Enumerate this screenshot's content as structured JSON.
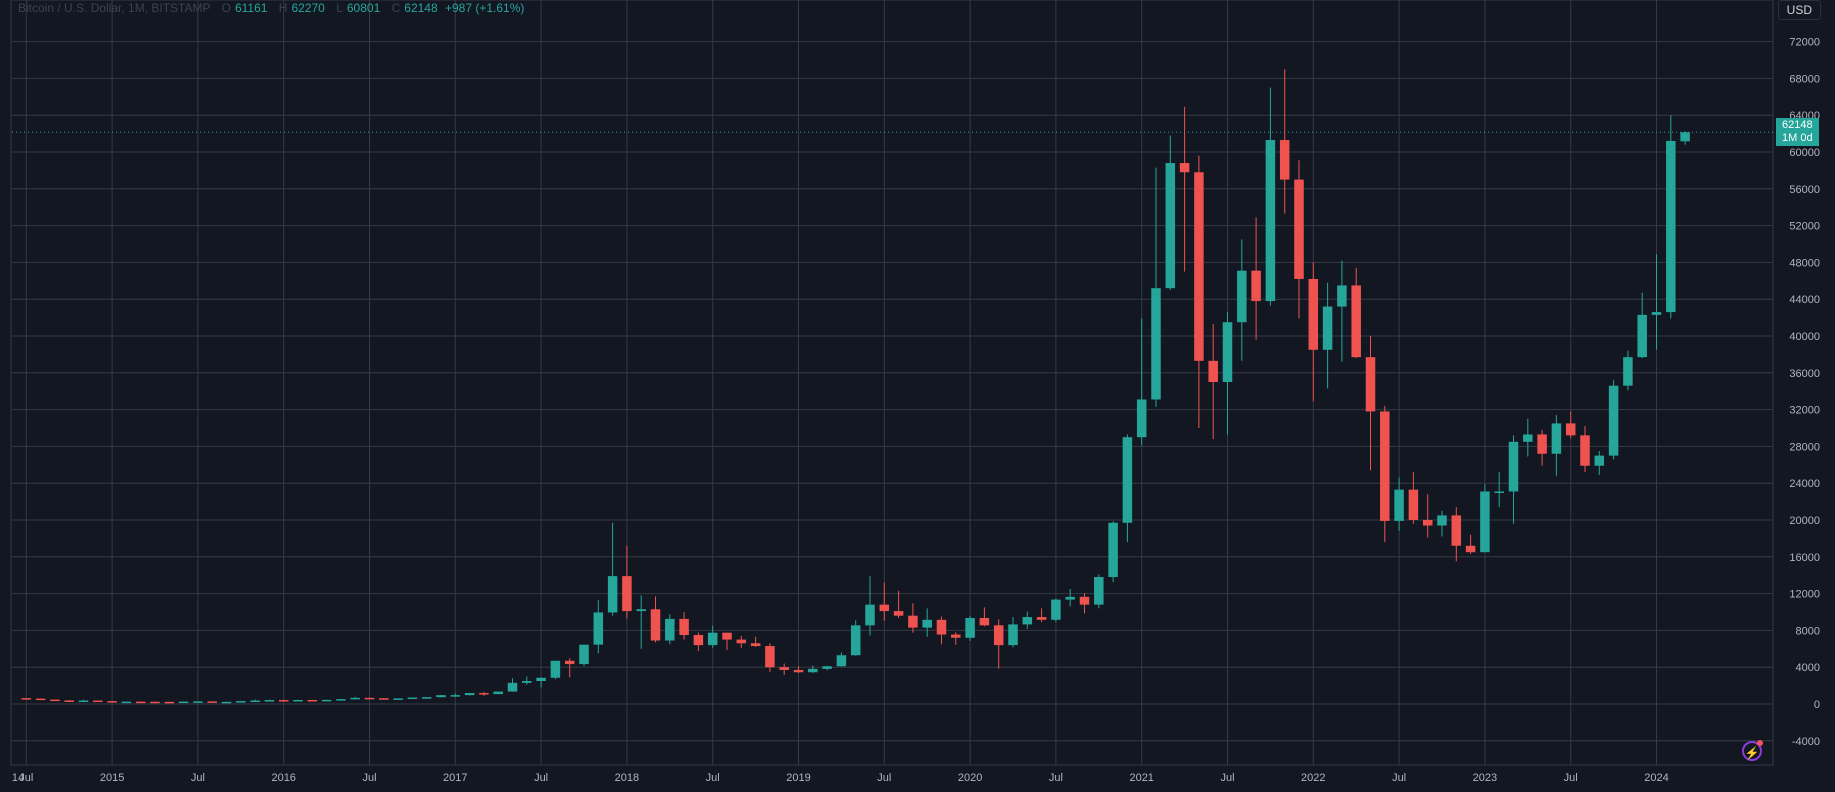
{
  "header": {
    "symbol": "Bitcoin / U.S. Dollar, 1M, BITSTAMP",
    "o_label": "O",
    "o": "61161",
    "h_label": "H",
    "h": "62270",
    "l_label": "L",
    "l": "60801",
    "c_label": "C",
    "c": "62148",
    "change": "+987 (+1.61%)"
  },
  "currency_button": "USD",
  "price_tag": {
    "price": "62148",
    "countdown": "1M 0d"
  },
  "colors": {
    "background": "#131722",
    "grid": "#363a45",
    "up": "#26a69a",
    "down": "#ef5350",
    "axis_text": "#b2b5be"
  },
  "icons": {
    "alert": "lightning-icon"
  },
  "chart_data": {
    "type": "candlestick",
    "ylim": [
      -5000,
      76000
    ],
    "y_ticks": [
      -4000,
      0,
      4000,
      8000,
      12000,
      16000,
      20000,
      24000,
      28000,
      32000,
      36000,
      40000,
      44000,
      48000,
      52000,
      56000,
      60000,
      64000,
      68000,
      72000
    ],
    "x_ticks": [
      {
        "label": "14",
        "month": "2014-06"
      },
      {
        "label": "Jul",
        "month": "2014-07"
      },
      {
        "label": "2015",
        "month": "2015-01"
      },
      {
        "label": "Jul",
        "month": "2015-07"
      },
      {
        "label": "2016",
        "month": "2016-01"
      },
      {
        "label": "Jul",
        "month": "2016-07"
      },
      {
        "label": "2017",
        "month": "2017-01"
      },
      {
        "label": "Jul",
        "month": "2017-07"
      },
      {
        "label": "2018",
        "month": "2018-01"
      },
      {
        "label": "Jul",
        "month": "2018-07"
      },
      {
        "label": "2019",
        "month": "2019-01"
      },
      {
        "label": "Jul",
        "month": "2019-07"
      },
      {
        "label": "2020",
        "month": "2020-01"
      },
      {
        "label": "Jul",
        "month": "2020-07"
      },
      {
        "label": "2021",
        "month": "2021-01"
      },
      {
        "label": "Jul",
        "month": "2021-07"
      },
      {
        "label": "2022",
        "month": "2022-01"
      },
      {
        "label": "Jul",
        "month": "2022-07"
      },
      {
        "label": "2023",
        "month": "2023-01"
      },
      {
        "label": "Jul",
        "month": "2023-07"
      },
      {
        "label": "2024",
        "month": "2024-01"
      }
    ],
    "last_price": 62148,
    "candles": [
      {
        "month": "2014-04",
        "o": 450,
        "h": 530,
        "l": 350,
        "c": 450
      },
      {
        "month": "2014-05",
        "o": 450,
        "h": 630,
        "l": 420,
        "c": 630
      },
      {
        "month": "2014-06",
        "o": 630,
        "h": 680,
        "l": 550,
        "c": 640
      },
      {
        "month": "2014-07",
        "o": 640,
        "h": 640,
        "l": 560,
        "c": 585
      },
      {
        "month": "2014-08",
        "o": 585,
        "h": 600,
        "l": 450,
        "c": 480
      },
      {
        "month": "2014-09",
        "o": 480,
        "h": 490,
        "l": 350,
        "c": 385
      },
      {
        "month": "2014-10",
        "o": 385,
        "h": 420,
        "l": 275,
        "c": 340
      },
      {
        "month": "2014-11",
        "o": 340,
        "h": 460,
        "l": 320,
        "c": 375
      },
      {
        "month": "2014-12",
        "o": 375,
        "h": 380,
        "l": 300,
        "c": 320
      },
      {
        "month": "2015-01",
        "o": 320,
        "h": 320,
        "l": 150,
        "c": 215
      },
      {
        "month": "2015-02",
        "o": 215,
        "h": 265,
        "l": 210,
        "c": 255
      },
      {
        "month": "2015-03",
        "o": 255,
        "h": 300,
        "l": 235,
        "c": 245
      },
      {
        "month": "2015-04",
        "o": 245,
        "h": 260,
        "l": 215,
        "c": 235
      },
      {
        "month": "2015-05",
        "o": 235,
        "h": 245,
        "l": 225,
        "c": 230
      },
      {
        "month": "2015-06",
        "o": 230,
        "h": 270,
        "l": 220,
        "c": 265
      },
      {
        "month": "2015-07",
        "o": 265,
        "h": 315,
        "l": 250,
        "c": 285
      },
      {
        "month": "2015-08",
        "o": 285,
        "h": 285,
        "l": 200,
        "c": 230
      },
      {
        "month": "2015-09",
        "o": 230,
        "h": 245,
        "l": 225,
        "c": 236
      },
      {
        "month": "2015-10",
        "o": 236,
        "h": 335,
        "l": 235,
        "c": 315
      },
      {
        "month": "2015-11",
        "o": 315,
        "h": 500,
        "l": 300,
        "c": 378
      },
      {
        "month": "2015-12",
        "o": 378,
        "h": 470,
        "l": 350,
        "c": 430
      },
      {
        "month": "2016-01",
        "o": 430,
        "h": 465,
        "l": 355,
        "c": 370
      },
      {
        "month": "2016-02",
        "o": 370,
        "h": 445,
        "l": 365,
        "c": 437
      },
      {
        "month": "2016-03",
        "o": 437,
        "h": 440,
        "l": 400,
        "c": 416
      },
      {
        "month": "2016-04",
        "o": 416,
        "h": 465,
        "l": 414,
        "c": 448
      },
      {
        "month": "2016-05",
        "o": 448,
        "h": 550,
        "l": 437,
        "c": 530
      },
      {
        "month": "2016-06",
        "o": 530,
        "h": 780,
        "l": 530,
        "c": 670
      },
      {
        "month": "2016-07",
        "o": 670,
        "h": 700,
        "l": 600,
        "c": 624
      },
      {
        "month": "2016-08",
        "o": 624,
        "h": 625,
        "l": 540,
        "c": 575
      },
      {
        "month": "2016-09",
        "o": 575,
        "h": 610,
        "l": 570,
        "c": 608
      },
      {
        "month": "2016-10",
        "o": 608,
        "h": 720,
        "l": 605,
        "c": 700
      },
      {
        "month": "2016-11",
        "o": 700,
        "h": 750,
        "l": 685,
        "c": 742
      },
      {
        "month": "2016-12",
        "o": 742,
        "h": 975,
        "l": 740,
        "c": 960
      },
      {
        "month": "2017-01",
        "o": 960,
        "h": 1150,
        "l": 750,
        "c": 965
      },
      {
        "month": "2017-02",
        "o": 965,
        "h": 1200,
        "l": 920,
        "c": 1190
      },
      {
        "month": "2017-03",
        "o": 1190,
        "h": 1300,
        "l": 890,
        "c": 1080
      },
      {
        "month": "2017-04",
        "o": 1080,
        "h": 1350,
        "l": 1070,
        "c": 1350
      },
      {
        "month": "2017-05",
        "o": 1350,
        "h": 2800,
        "l": 1330,
        "c": 2300
      },
      {
        "month": "2017-06",
        "o": 2300,
        "h": 3000,
        "l": 2100,
        "c": 2500
      },
      {
        "month": "2017-07",
        "o": 2500,
        "h": 2900,
        "l": 1800,
        "c": 2850
      },
      {
        "month": "2017-08",
        "o": 2850,
        "h": 4700,
        "l": 2700,
        "c": 4700
      },
      {
        "month": "2017-09",
        "o": 4700,
        "h": 4980,
        "l": 2900,
        "c": 4340
      },
      {
        "month": "2017-10",
        "o": 4340,
        "h": 6450,
        "l": 4100,
        "c": 6450
      },
      {
        "month": "2017-11",
        "o": 6450,
        "h": 11300,
        "l": 5500,
        "c": 9950
      },
      {
        "month": "2017-12",
        "o": 9950,
        "h": 19700,
        "l": 9600,
        "c": 13900
      },
      {
        "month": "2018-01",
        "o": 13900,
        "h": 17200,
        "l": 9300,
        "c": 10100
      },
      {
        "month": "2018-02",
        "o": 10100,
        "h": 11800,
        "l": 6000,
        "c": 10300
      },
      {
        "month": "2018-03",
        "o": 10300,
        "h": 11700,
        "l": 6700,
        "c": 6900
      },
      {
        "month": "2018-04",
        "o": 6900,
        "h": 9750,
        "l": 6500,
        "c": 9250
      },
      {
        "month": "2018-05",
        "o": 9250,
        "h": 9990,
        "l": 7000,
        "c": 7500
      },
      {
        "month": "2018-06",
        "o": 7500,
        "h": 7770,
        "l": 5750,
        "c": 6400
      },
      {
        "month": "2018-07",
        "o": 6400,
        "h": 8500,
        "l": 6100,
        "c": 7750
      },
      {
        "month": "2018-08",
        "o": 7750,
        "h": 7750,
        "l": 5880,
        "c": 7000
      },
      {
        "month": "2018-09",
        "o": 7000,
        "h": 7400,
        "l": 6100,
        "c": 6600
      },
      {
        "month": "2018-10",
        "o": 6600,
        "h": 7300,
        "l": 6200,
        "c": 6300
      },
      {
        "month": "2018-11",
        "o": 6300,
        "h": 6600,
        "l": 3500,
        "c": 4000
      },
      {
        "month": "2018-12",
        "o": 4000,
        "h": 4400,
        "l": 3150,
        "c": 3700
      },
      {
        "month": "2019-01",
        "o": 3700,
        "h": 4100,
        "l": 3350,
        "c": 3450
      },
      {
        "month": "2019-02",
        "o": 3450,
        "h": 4200,
        "l": 3380,
        "c": 3820
      },
      {
        "month": "2019-03",
        "o": 3820,
        "h": 4150,
        "l": 3680,
        "c": 4100
      },
      {
        "month": "2019-04",
        "o": 4100,
        "h": 5600,
        "l": 4050,
        "c": 5300
      },
      {
        "month": "2019-05",
        "o": 5300,
        "h": 9100,
        "l": 5250,
        "c": 8550
      },
      {
        "month": "2019-06",
        "o": 8550,
        "h": 13900,
        "l": 7450,
        "c": 10800
      },
      {
        "month": "2019-07",
        "o": 10800,
        "h": 13200,
        "l": 9050,
        "c": 10100
      },
      {
        "month": "2019-08",
        "o": 10100,
        "h": 12300,
        "l": 9350,
        "c": 9600
      },
      {
        "month": "2019-09",
        "o": 9600,
        "h": 10950,
        "l": 7750,
        "c": 8300
      },
      {
        "month": "2019-10",
        "o": 8300,
        "h": 10400,
        "l": 7300,
        "c": 9150
      },
      {
        "month": "2019-11",
        "o": 9150,
        "h": 9500,
        "l": 6500,
        "c": 7550
      },
      {
        "month": "2019-12",
        "o": 7550,
        "h": 7800,
        "l": 6430,
        "c": 7200
      },
      {
        "month": "2020-01",
        "o": 7200,
        "h": 9600,
        "l": 6850,
        "c": 9350
      },
      {
        "month": "2020-02",
        "o": 9350,
        "h": 10500,
        "l": 8450,
        "c": 8550
      },
      {
        "month": "2020-03",
        "o": 8550,
        "h": 9200,
        "l": 3850,
        "c": 6400
      },
      {
        "month": "2020-04",
        "o": 6400,
        "h": 9450,
        "l": 6150,
        "c": 8650
      },
      {
        "month": "2020-05",
        "o": 8650,
        "h": 10050,
        "l": 8150,
        "c": 9450
      },
      {
        "month": "2020-06",
        "o": 9450,
        "h": 10400,
        "l": 8900,
        "c": 9150
      },
      {
        "month": "2020-07",
        "o": 9150,
        "h": 11450,
        "l": 8900,
        "c": 11350
      },
      {
        "month": "2020-08",
        "o": 11350,
        "h": 12500,
        "l": 10600,
        "c": 11650
      },
      {
        "month": "2020-09",
        "o": 11650,
        "h": 12050,
        "l": 9850,
        "c": 10800
      },
      {
        "month": "2020-10",
        "o": 10800,
        "h": 14100,
        "l": 10400,
        "c": 13800
      },
      {
        "month": "2020-11",
        "o": 13800,
        "h": 19850,
        "l": 13250,
        "c": 19700
      },
      {
        "month": "2020-12",
        "o": 19700,
        "h": 29300,
        "l": 17600,
        "c": 29000
      },
      {
        "month": "2021-01",
        "o": 29000,
        "h": 41900,
        "l": 28100,
        "c": 33100
      },
      {
        "month": "2021-02",
        "o": 33100,
        "h": 58300,
        "l": 32300,
        "c": 45200
      },
      {
        "month": "2021-03",
        "o": 45200,
        "h": 61800,
        "l": 45000,
        "c": 58800
      },
      {
        "month": "2021-04",
        "o": 58800,
        "h": 64900,
        "l": 47000,
        "c": 57800
      },
      {
        "month": "2021-05",
        "o": 57800,
        "h": 59600,
        "l": 30000,
        "c": 37300
      },
      {
        "month": "2021-06",
        "o": 37300,
        "h": 41300,
        "l": 28800,
        "c": 35000
      },
      {
        "month": "2021-07",
        "o": 35000,
        "h": 42600,
        "l": 29300,
        "c": 41500
      },
      {
        "month": "2021-08",
        "o": 41500,
        "h": 50500,
        "l": 37300,
        "c": 47100
      },
      {
        "month": "2021-09",
        "o": 47100,
        "h": 52900,
        "l": 39600,
        "c": 43800
      },
      {
        "month": "2021-10",
        "o": 43800,
        "h": 67000,
        "l": 43300,
        "c": 61300
      },
      {
        "month": "2021-11",
        "o": 61300,
        "h": 69000,
        "l": 53300,
        "c": 57000
      },
      {
        "month": "2021-12",
        "o": 57000,
        "h": 59100,
        "l": 41900,
        "c": 46200
      },
      {
        "month": "2022-01",
        "o": 46200,
        "h": 48000,
        "l": 32900,
        "c": 38500
      },
      {
        "month": "2022-02",
        "o": 38500,
        "h": 45800,
        "l": 34300,
        "c": 43200
      },
      {
        "month": "2022-03",
        "o": 43200,
        "h": 48200,
        "l": 37200,
        "c": 45500
      },
      {
        "month": "2022-04",
        "o": 45500,
        "h": 47400,
        "l": 37600,
        "c": 37700
      },
      {
        "month": "2022-05",
        "o": 37700,
        "h": 40000,
        "l": 25400,
        "c": 31800
      },
      {
        "month": "2022-06",
        "o": 31800,
        "h": 32400,
        "l": 17600,
        "c": 19900
      },
      {
        "month": "2022-07",
        "o": 19900,
        "h": 24600,
        "l": 18800,
        "c": 23300
      },
      {
        "month": "2022-08",
        "o": 23300,
        "h": 25200,
        "l": 19600,
        "c": 20000
      },
      {
        "month": "2022-09",
        "o": 20000,
        "h": 22800,
        "l": 18100,
        "c": 19400
      },
      {
        "month": "2022-10",
        "o": 19400,
        "h": 21000,
        "l": 18200,
        "c": 20500
      },
      {
        "month": "2022-11",
        "o": 20500,
        "h": 21400,
        "l": 15500,
        "c": 17200
      },
      {
        "month": "2022-12",
        "o": 17200,
        "h": 18400,
        "l": 16300,
        "c": 16500
      },
      {
        "month": "2023-01",
        "o": 16500,
        "h": 23900,
        "l": 16500,
        "c": 23100
      },
      {
        "month": "2023-02",
        "o": 23100,
        "h": 25200,
        "l": 21400,
        "c": 23100
      },
      {
        "month": "2023-03",
        "o": 23100,
        "h": 29200,
        "l": 19600,
        "c": 28500
      },
      {
        "month": "2023-04",
        "o": 28500,
        "h": 31000,
        "l": 26900,
        "c": 29300
      },
      {
        "month": "2023-05",
        "o": 29300,
        "h": 29800,
        "l": 25900,
        "c": 27200
      },
      {
        "month": "2023-06",
        "o": 27200,
        "h": 31400,
        "l": 24800,
        "c": 30500
      },
      {
        "month": "2023-07",
        "o": 30500,
        "h": 31800,
        "l": 28900,
        "c": 29200
      },
      {
        "month": "2023-08",
        "o": 29200,
        "h": 30200,
        "l": 25200,
        "c": 25900
      },
      {
        "month": "2023-09",
        "o": 25900,
        "h": 27500,
        "l": 24900,
        "c": 27000
      },
      {
        "month": "2023-10",
        "o": 27000,
        "h": 35200,
        "l": 26600,
        "c": 34600
      },
      {
        "month": "2023-11",
        "o": 34600,
        "h": 38400,
        "l": 34100,
        "c": 37700
      },
      {
        "month": "2023-12",
        "o": 37700,
        "h": 44700,
        "l": 37600,
        "c": 42300
      },
      {
        "month": "2024-01",
        "o": 42300,
        "h": 48900,
        "l": 38500,
        "c": 42600
      },
      {
        "month": "2024-02",
        "o": 42600,
        "h": 64000,
        "l": 41900,
        "c": 61200
      },
      {
        "month": "2024-03",
        "o": 61161,
        "h": 62270,
        "l": 60801,
        "c": 62148
      }
    ]
  }
}
